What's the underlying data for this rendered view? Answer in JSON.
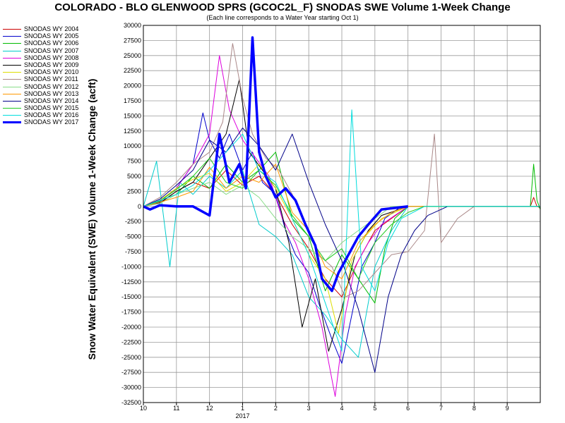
{
  "chart_data": {
    "type": "line",
    "title": "COLORADO - BLO GLENWOOD SPRS (GCOC2L_F) SNODAS SWE Volume 1-Week Change",
    "subtitle": "(Each line corresponds to a Water Year starting Oct 1)",
    "ylabel": "Snow Water Equivalent (SWE) Volume 1-Week Change (acft)",
    "xlabel": "",
    "ylim": [
      -32500,
      30000
    ],
    "xlim": [
      0,
      12
    ],
    "grid": true,
    "legend_position": "left",
    "x_ticks": [
      "10",
      "11",
      "12",
      "1",
      "2",
      "3",
      "4",
      "5",
      "6",
      "7",
      "8",
      "9"
    ],
    "x_year_label": "2017",
    "y_ticks": [
      30000,
      27500,
      25000,
      22500,
      20000,
      17500,
      15000,
      12500,
      10000,
      7500,
      5000,
      2500,
      0,
      -2500,
      -5000,
      -7500,
      -10000,
      -12500,
      -15000,
      -17500,
      -20000,
      -22500,
      -25000,
      -27500,
      -30000,
      -32500
    ],
    "series": [
      {
        "name": "SNODAS WY 2004",
        "color": "#cc0000",
        "width": 1,
        "points": [
          [
            0,
            0
          ],
          [
            0.5,
            500
          ],
          [
            1,
            2500
          ],
          [
            1.5,
            4000
          ],
          [
            2,
            3000
          ],
          [
            2.5,
            6000
          ],
          [
            3,
            3500
          ],
          [
            3.5,
            5000
          ],
          [
            4,
            2000
          ],
          [
            4.5,
            -3000
          ],
          [
            5,
            -7000
          ],
          [
            5.5,
            -12000
          ],
          [
            6,
            -15000
          ],
          [
            6.5,
            -9000
          ],
          [
            7,
            -4000
          ],
          [
            7.5,
            -2000
          ],
          [
            8,
            0
          ],
          [
            11.7,
            0
          ],
          [
            11.8,
            1500
          ],
          [
            11.9,
            0
          ],
          [
            12,
            -200
          ]
        ]
      },
      {
        "name": "SNODAS WY 2005",
        "color": "#0000cc",
        "width": 1,
        "points": [
          [
            0,
            0
          ],
          [
            0.5,
            800
          ],
          [
            1,
            3000
          ],
          [
            1.5,
            7000
          ],
          [
            1.8,
            15500
          ],
          [
            2,
            11000
          ],
          [
            2.3,
            8000
          ],
          [
            2.6,
            12000
          ],
          [
            3,
            6000
          ],
          [
            3.3,
            9000
          ],
          [
            3.6,
            4000
          ],
          [
            4,
            2000
          ],
          [
            4.3,
            -4000
          ],
          [
            4.6,
            -8000
          ],
          [
            5,
            -11000
          ],
          [
            5.3,
            -16000
          ],
          [
            5.7,
            -22000
          ],
          [
            6,
            -26000
          ],
          [
            6.3,
            -18000
          ],
          [
            6.6,
            -10000
          ],
          [
            7,
            -6000
          ],
          [
            7.3,
            -2000
          ],
          [
            7.8,
            0
          ],
          [
            12,
            0
          ]
        ]
      },
      {
        "name": "SNODAS WY 2006",
        "color": "#00bb00",
        "width": 1,
        "points": [
          [
            0,
            0
          ],
          [
            0.5,
            1000
          ],
          [
            1,
            2000
          ],
          [
            1.5,
            5000
          ],
          [
            2,
            3000
          ],
          [
            2.5,
            7000
          ],
          [
            3,
            4000
          ],
          [
            3.5,
            6000
          ],
          [
            4,
            9000
          ],
          [
            4.5,
            -2000
          ],
          [
            5,
            -5000
          ],
          [
            5.5,
            -14000
          ],
          [
            6,
            -8000
          ],
          [
            6.5,
            -12000
          ],
          [
            7,
            -16000
          ],
          [
            7.3,
            -7000
          ],
          [
            7.6,
            -2000
          ],
          [
            8,
            0
          ],
          [
            11.7,
            0
          ],
          [
            11.8,
            7000
          ],
          [
            11.9,
            1000
          ],
          [
            12,
            -500
          ]
        ]
      },
      {
        "name": "SNODAS WY 2007",
        "color": "#00cccc",
        "width": 1,
        "points": [
          [
            0,
            0
          ],
          [
            0.4,
            7500
          ],
          [
            0.8,
            -10000
          ],
          [
            1.1,
            4000
          ],
          [
            1.5,
            2000
          ],
          [
            2,
            5000
          ],
          [
            2.5,
            3000
          ],
          [
            3,
            6000
          ],
          [
            3.5,
            -3000
          ],
          [
            4,
            -5000
          ],
          [
            4.5,
            -8000
          ],
          [
            5,
            -15000
          ],
          [
            5.5,
            -18000
          ],
          [
            6,
            -22000
          ],
          [
            6.5,
            -25000
          ],
          [
            7,
            -10000
          ],
          [
            7.5,
            -4000
          ],
          [
            8,
            0
          ],
          [
            12,
            0
          ]
        ]
      },
      {
        "name": "SNODAS WY 2008",
        "color": "#dd00dd",
        "width": 1,
        "points": [
          [
            0,
            0
          ],
          [
            0.5,
            1000
          ],
          [
            1,
            3000
          ],
          [
            1.5,
            7000
          ],
          [
            2,
            12000
          ],
          [
            2.3,
            25000
          ],
          [
            2.6,
            16000
          ],
          [
            3,
            11000
          ],
          [
            3.4,
            8000
          ],
          [
            3.8,
            5000
          ],
          [
            4.2,
            -2000
          ],
          [
            4.6,
            -6000
          ],
          [
            5,
            -12000
          ],
          [
            5.4,
            -20000
          ],
          [
            5.8,
            -31500
          ],
          [
            6.1,
            -18000
          ],
          [
            6.4,
            -10000
          ],
          [
            6.8,
            -6000
          ],
          [
            7.2,
            -3000
          ],
          [
            8,
            0
          ],
          [
            12,
            0
          ]
        ]
      },
      {
        "name": "SNODAS WY 2009",
        "color": "#000000",
        "width": 1,
        "points": [
          [
            0,
            0
          ],
          [
            0.5,
            600
          ],
          [
            1,
            2500
          ],
          [
            1.5,
            4000
          ],
          [
            2,
            8000
          ],
          [
            2.5,
            12000
          ],
          [
            2.9,
            21000
          ],
          [
            3.2,
            9000
          ],
          [
            3.6,
            6000
          ],
          [
            4,
            3000
          ],
          [
            4.4,
            -6000
          ],
          [
            4.8,
            -20000
          ],
          [
            5.2,
            -12000
          ],
          [
            5.6,
            -24000
          ],
          [
            6,
            -17000
          ],
          [
            6.4,
            -8000
          ],
          [
            6.8,
            -4000
          ],
          [
            7.2,
            -1500
          ],
          [
            8,
            0
          ],
          [
            12,
            0
          ]
        ]
      },
      {
        "name": "SNODAS WY 2010",
        "color": "#dddd00",
        "width": 1,
        "points": [
          [
            0,
            0
          ],
          [
            0.5,
            1000
          ],
          [
            1,
            3000
          ],
          [
            1.5,
            4500
          ],
          [
            2,
            5500
          ],
          [
            2.5,
            2500
          ],
          [
            3,
            4000
          ],
          [
            3.5,
            7000
          ],
          [
            4,
            3000
          ],
          [
            4.5,
            -2000
          ],
          [
            5,
            -8000
          ],
          [
            5.5,
            -12000
          ],
          [
            5.9,
            -21000
          ],
          [
            6.3,
            -9000
          ],
          [
            6.7,
            -5000
          ],
          [
            7.2,
            -2000
          ],
          [
            8,
            0
          ],
          [
            12,
            0
          ]
        ]
      },
      {
        "name": "SNODAS WY 2011",
        "color": "#aa8888",
        "width": 1,
        "points": [
          [
            0,
            0
          ],
          [
            0.5,
            1500
          ],
          [
            1,
            4000
          ],
          [
            1.5,
            7000
          ],
          [
            2,
            9000
          ],
          [
            2.4,
            14000
          ],
          [
            2.7,
            27000
          ],
          [
            3,
            18000
          ],
          [
            3.3,
            12000
          ],
          [
            3.7,
            8000
          ],
          [
            4.1,
            6000
          ],
          [
            4.5,
            2000
          ],
          [
            4.9,
            -3000
          ],
          [
            5.3,
            -8000
          ],
          [
            5.7,
            -10000
          ],
          [
            6.1,
            -15000
          ],
          [
            6.5,
            -14000
          ],
          [
            7,
            -11000
          ],
          [
            7.5,
            -8000
          ],
          [
            8,
            -7500
          ],
          [
            8.5,
            -4000
          ],
          [
            8.8,
            12000
          ],
          [
            9,
            -6000
          ],
          [
            9.5,
            -2000
          ],
          [
            10,
            0
          ],
          [
            12,
            0
          ]
        ]
      },
      {
        "name": "SNODAS WY 2012",
        "color": "#88dd88",
        "width": 1,
        "points": [
          [
            0,
            0
          ],
          [
            0.5,
            500
          ],
          [
            1,
            2000
          ],
          [
            1.5,
            3000
          ],
          [
            2,
            4000
          ],
          [
            2.5,
            2000
          ],
          [
            3,
            3500
          ],
          [
            3.5,
            1500
          ],
          [
            4,
            -2000
          ],
          [
            4.5,
            -5000
          ],
          [
            5,
            -7000
          ],
          [
            5.5,
            -9000
          ],
          [
            6,
            -6000
          ],
          [
            6.5,
            -4000
          ],
          [
            7,
            -2000
          ],
          [
            7.5,
            0
          ],
          [
            12,
            0
          ]
        ]
      },
      {
        "name": "SNODAS WY 2013",
        "color": "#ff9900",
        "width": 1,
        "points": [
          [
            0,
            0
          ],
          [
            0.5,
            700
          ],
          [
            1,
            1500
          ],
          [
            1.5,
            2500
          ],
          [
            2,
            6500
          ],
          [
            2.5,
            3000
          ],
          [
            3,
            5000
          ],
          [
            3.5,
            4000
          ],
          [
            4,
            7000
          ],
          [
            4.5,
            -1000
          ],
          [
            5,
            -4000
          ],
          [
            5.5,
            -10000
          ],
          [
            6,
            -12000
          ],
          [
            6.5,
            -6000
          ],
          [
            7,
            -3000
          ],
          [
            7.5,
            -1000
          ],
          [
            8,
            0
          ],
          [
            12,
            0
          ]
        ]
      },
      {
        "name": "SNODAS WY 2014",
        "color": "#000088",
        "width": 1,
        "points": [
          [
            0,
            0
          ],
          [
            0.5,
            1200
          ],
          [
            1,
            3500
          ],
          [
            1.5,
            6000
          ],
          [
            2,
            11000
          ],
          [
            2.5,
            9000
          ],
          [
            3,
            13000
          ],
          [
            3.5,
            10000
          ],
          [
            4,
            6000
          ],
          [
            4.5,
            12000
          ],
          [
            5,
            4000
          ],
          [
            5.5,
            -3000
          ],
          [
            6,
            -9000
          ],
          [
            6.5,
            -17000
          ],
          [
            7,
            -27500
          ],
          [
            7.4,
            -15000
          ],
          [
            7.8,
            -8000
          ],
          [
            8.2,
            -4000
          ],
          [
            8.6,
            -1500
          ],
          [
            9.2,
            0
          ],
          [
            12,
            0
          ]
        ]
      },
      {
        "name": "SNODAS WY 2015",
        "color": "#22cc22",
        "width": 1,
        "points": [
          [
            0,
            0
          ],
          [
            0.5,
            900
          ],
          [
            1,
            2800
          ],
          [
            1.5,
            5000
          ],
          [
            2,
            8000
          ],
          [
            2.5,
            4000
          ],
          [
            3,
            3000
          ],
          [
            3.5,
            6000
          ],
          [
            4,
            3500
          ],
          [
            4.5,
            -1500
          ],
          [
            5,
            -5000
          ],
          [
            5.5,
            -9000
          ],
          [
            6,
            -7000
          ],
          [
            6.5,
            -12000
          ],
          [
            7,
            -6000
          ],
          [
            7.5,
            -3000
          ],
          [
            8,
            -1000
          ],
          [
            8.5,
            0
          ],
          [
            12,
            0
          ]
        ]
      },
      {
        "name": "SNODAS WY 2016",
        "color": "#00dddd",
        "width": 1,
        "points": [
          [
            0,
            0
          ],
          [
            0.5,
            1000
          ],
          [
            1,
            2000
          ],
          [
            1.5,
            3500
          ],
          [
            2,
            6000
          ],
          [
            2.5,
            9000
          ],
          [
            3,
            12000
          ],
          [
            3.5,
            6000
          ],
          [
            4,
            4000
          ],
          [
            4.5,
            -2000
          ],
          [
            5,
            -8000
          ],
          [
            5.5,
            -16000
          ],
          [
            6,
            -24000
          ],
          [
            6.3,
            16000
          ],
          [
            6.6,
            -10000
          ],
          [
            7,
            -14000
          ],
          [
            7.4,
            -6000
          ],
          [
            7.8,
            -2000
          ],
          [
            8.5,
            0
          ],
          [
            12,
            0
          ]
        ]
      },
      {
        "name": "SNODAS WY 2017",
        "color": "#0000ff",
        "width": 3.5,
        "points": [
          [
            0,
            0
          ],
          [
            0.2,
            -500
          ],
          [
            0.5,
            200
          ],
          [
            1,
            0
          ],
          [
            1.5,
            0
          ],
          [
            2,
            -1500
          ],
          [
            2.3,
            12000
          ],
          [
            2.6,
            4000
          ],
          [
            2.9,
            7000
          ],
          [
            3.1,
            3000
          ],
          [
            3.3,
            28000
          ],
          [
            3.5,
            9000
          ],
          [
            3.7,
            5000
          ],
          [
            4,
            1500
          ],
          [
            4.3,
            3000
          ],
          [
            4.6,
            1000
          ],
          [
            4.9,
            -3000
          ],
          [
            5.2,
            -6500
          ],
          [
            5.4,
            -12000
          ],
          [
            5.7,
            -14000
          ],
          [
            5.9,
            -11000
          ],
          [
            6.2,
            -8000
          ],
          [
            6.5,
            -5000
          ],
          [
            6.8,
            -3000
          ],
          [
            7.2,
            -500
          ],
          [
            8,
            0
          ]
        ]
      }
    ]
  }
}
